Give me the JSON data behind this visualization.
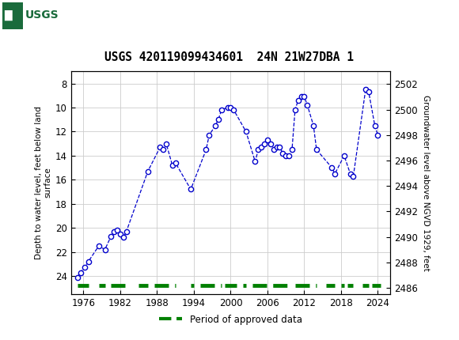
{
  "title": "USGS 420119099434601  24N 21W27DBA 1",
  "ylabel_left": "Depth to water level, feet below land\nsurface",
  "ylabel_right": "Groundwater level above NGVD 1929, feet",
  "xlim": [
    1974,
    2026
  ],
  "ylim_left": [
    25.5,
    7.0
  ],
  "ylim_right": [
    2485.5,
    2503.0
  ],
  "xticks": [
    1976,
    1982,
    1988,
    1994,
    2000,
    2006,
    2012,
    2018,
    2024
  ],
  "yticks_left": [
    8,
    10,
    12,
    14,
    16,
    18,
    20,
    22,
    24
  ],
  "yticks_right": [
    2502,
    2500,
    2498,
    2496,
    2494,
    2492,
    2490,
    2488,
    2486
  ],
  "background_color": "#ffffff",
  "header_color": "#1a6b3c",
  "grid_color": "#cccccc",
  "line_color": "#0000cc",
  "marker_color": "#0000cc",
  "legend_label": "Period of approved data",
  "legend_color": "#008000",
  "data_x": [
    1975.0,
    1975.5,
    1976.2,
    1976.8,
    1978.5,
    1979.5,
    1980.5,
    1981.0,
    1981.5,
    1982.0,
    1982.5,
    1983.0,
    1986.5,
    1988.5,
    1989.0,
    1989.5,
    1990.5,
    1991.0,
    1993.5,
    1996.0,
    1996.5,
    1997.5,
    1998.0,
    1998.5,
    1999.5,
    2000.0,
    2000.5,
    2002.5,
    2004.0,
    2004.5,
    2005.0,
    2005.5,
    2006.0,
    2006.5,
    2007.0,
    2007.5,
    2008.0,
    2008.5,
    2009.0,
    2009.5,
    2010.0,
    2010.5,
    2011.0,
    2011.5,
    2012.0,
    2012.5,
    2013.5,
    2014.0,
    2016.5,
    2017.0,
    2018.5,
    2019.5,
    2020.0,
    2022.0,
    2022.5,
    2023.5,
    2024.0
  ],
  "data_y": [
    24.1,
    23.7,
    23.3,
    22.8,
    21.5,
    21.8,
    20.7,
    20.3,
    20.2,
    20.5,
    20.8,
    20.3,
    15.3,
    13.3,
    13.5,
    13.0,
    14.8,
    14.6,
    16.8,
    13.5,
    12.3,
    11.5,
    11.0,
    10.2,
    10.0,
    10.0,
    10.2,
    12.0,
    14.5,
    13.5,
    13.3,
    13.0,
    12.7,
    13.0,
    13.5,
    13.3,
    13.3,
    13.8,
    14.0,
    14.0,
    13.5,
    10.2,
    9.4,
    9.1,
    9.1,
    9.8,
    11.5,
    13.5,
    15.0,
    15.5,
    14.0,
    15.5,
    15.7,
    8.5,
    8.7,
    11.5,
    12.3
  ],
  "approved_segments": [
    [
      1975.0,
      1976.8
    ],
    [
      1978.5,
      1979.5
    ],
    [
      1980.5,
      1983.0
    ],
    [
      1985.0,
      1986.5
    ],
    [
      1987.5,
      1991.0
    ],
    [
      1993.5,
      1994.0
    ],
    [
      1995.0,
      1998.5
    ],
    [
      1999.0,
      2001.0
    ],
    [
      2002.0,
      2002.5
    ],
    [
      2003.5,
      2010.0
    ],
    [
      2010.5,
      2014.0
    ],
    [
      2015.5,
      2017.0
    ],
    [
      2018.0,
      2018.5
    ],
    [
      2019.0,
      2020.0
    ],
    [
      2021.5,
      2022.5
    ],
    [
      2023.0,
      2024.5
    ]
  ]
}
